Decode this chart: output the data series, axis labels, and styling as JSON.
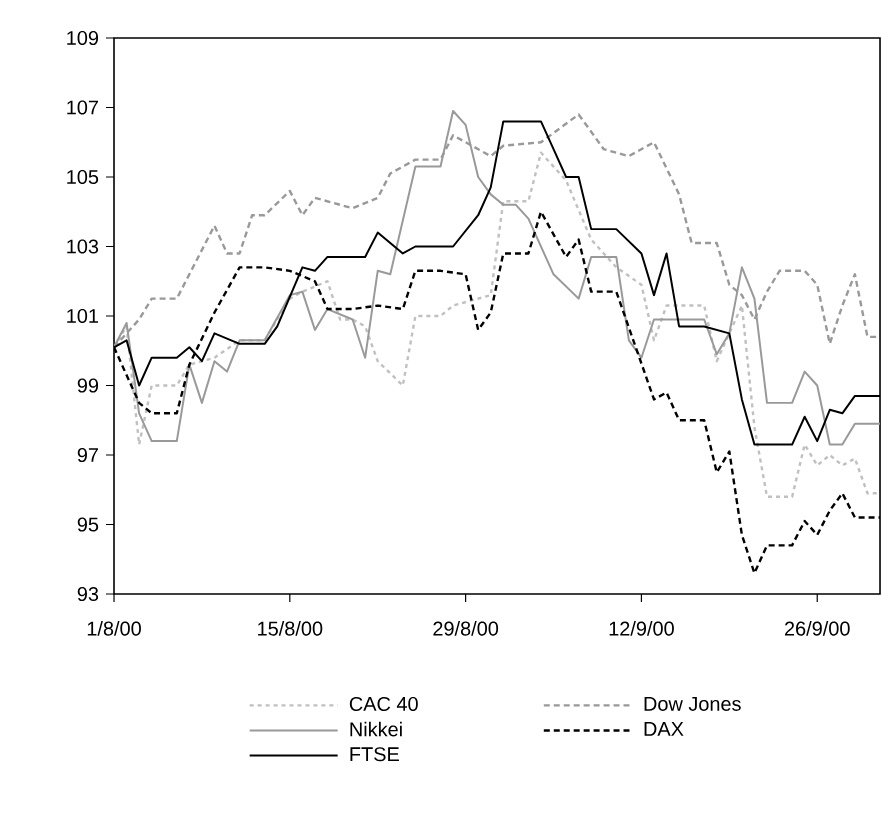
{
  "chart_data": {
    "type": "line",
    "marker": "none",
    "legend": "bottom",
    "xlim": [
      "2000-08-01",
      "2000-10-01"
    ],
    "xticks": [
      {
        "value": "2000-08-01",
        "label": "1/8/00"
      },
      {
        "value": "2000-08-15",
        "label": "15/8/00"
      },
      {
        "value": "2000-08-29",
        "label": "29/8/00"
      },
      {
        "value": "2000-09-12",
        "label": "12/9/00"
      },
      {
        "value": "2000-09-26",
        "label": "26/9/00"
      }
    ],
    "ylim": [
      93,
      109
    ],
    "yticks": [
      93,
      95,
      97,
      99,
      101,
      103,
      105,
      107,
      109
    ],
    "series": [
      {
        "name": "CAC 40",
        "color": "#c0c0c0",
        "line_style": "dotted",
        "x": [
          "2000-08-01",
          "2000-08-02",
          "2000-08-03",
          "2000-08-04",
          "2000-08-06",
          "2000-08-07",
          "2000-08-09",
          "2000-08-11",
          "2000-08-13",
          "2000-08-15",
          "2000-08-16",
          "2000-08-18",
          "2000-08-19",
          "2000-08-20",
          "2000-08-21",
          "2000-08-22",
          "2000-08-24",
          "2000-08-25",
          "2000-08-27",
          "2000-08-28",
          "2000-08-31",
          "2000-09-01",
          "2000-09-03",
          "2000-09-04",
          "2000-09-06",
          "2000-09-08",
          "2000-09-10",
          "2000-09-12",
          "2000-09-13",
          "2000-09-14",
          "2000-09-17",
          "2000-09-18",
          "2000-09-20",
          "2000-09-21",
          "2000-09-22",
          "2000-09-24",
          "2000-09-25",
          "2000-09-26",
          "2000-09-27",
          "2000-09-28",
          "2000-09-29",
          "2000-09-30",
          "2000-10-01"
        ],
        "values": [
          100.1,
          100.7,
          97.3,
          99.0,
          99.0,
          99.6,
          99.8,
          100.3,
          100.3,
          101.5,
          101.7,
          102.0,
          100.9,
          100.9,
          100.7,
          99.7,
          99.0,
          101.0,
          101.0,
          101.3,
          101.6,
          104.3,
          104.3,
          105.7,
          104.9,
          103.2,
          102.4,
          101.9,
          100.3,
          101.3,
          101.3,
          99.7,
          101.3,
          97.8,
          95.8,
          95.8,
          97.3,
          96.7,
          97.0,
          96.7,
          96.9,
          95.9,
          95.9
        ]
      },
      {
        "name": "Dow Jones",
        "color": "#999999",
        "line_style": "dashed",
        "x": [
          "2000-08-01",
          "2000-08-03",
          "2000-08-04",
          "2000-08-06",
          "2000-08-09",
          "2000-08-10",
          "2000-08-11",
          "2000-08-12",
          "2000-08-13",
          "2000-08-15",
          "2000-08-16",
          "2000-08-17",
          "2000-08-20",
          "2000-08-22",
          "2000-08-23",
          "2000-08-25",
          "2000-08-27",
          "2000-08-28",
          "2000-08-31",
          "2000-09-01",
          "2000-09-04",
          "2000-09-07",
          "2000-09-09",
          "2000-09-11",
          "2000-09-13",
          "2000-09-15",
          "2000-09-16",
          "2000-09-18",
          "2000-09-19",
          "2000-09-20",
          "2000-09-21",
          "2000-09-22",
          "2000-09-23",
          "2000-09-25",
          "2000-09-26",
          "2000-09-27",
          "2000-09-28",
          "2000-09-29",
          "2000-09-30",
          "2000-10-01"
        ],
        "values": [
          100.1,
          100.9,
          101.5,
          101.5,
          103.6,
          102.8,
          102.8,
          103.9,
          103.9,
          104.6,
          103.9,
          104.4,
          104.1,
          104.4,
          105.1,
          105.5,
          105.5,
          106.2,
          105.6,
          105.9,
          106.0,
          106.8,
          105.8,
          105.6,
          106.0,
          104.5,
          103.1,
          103.1,
          101.9,
          101.6,
          100.9,
          101.7,
          102.3,
          102.3,
          101.9,
          100.2,
          101.3,
          102.2,
          100.4,
          100.4
        ]
      },
      {
        "name": "Nikkei",
        "color": "#999999",
        "line_style": "solid",
        "x": [
          "2000-08-01",
          "2000-08-02",
          "2000-08-03",
          "2000-08-04",
          "2000-08-06",
          "2000-08-07",
          "2000-08-08",
          "2000-08-09",
          "2000-08-10",
          "2000-08-11",
          "2000-08-13",
          "2000-08-15",
          "2000-08-16",
          "2000-08-17",
          "2000-08-18",
          "2000-08-20",
          "2000-08-21",
          "2000-08-22",
          "2000-08-23",
          "2000-08-25",
          "2000-08-27",
          "2000-08-28",
          "2000-08-29",
          "2000-08-30",
          "2000-08-31",
          "2000-09-01",
          "2000-09-02",
          "2000-09-03",
          "2000-09-05",
          "2000-09-07",
          "2000-09-08",
          "2000-09-10",
          "2000-09-11",
          "2000-09-12",
          "2000-09-13",
          "2000-09-17",
          "2000-09-18",
          "2000-09-19",
          "2000-09-20",
          "2000-09-21",
          "2000-09-22",
          "2000-09-24",
          "2000-09-25",
          "2000-09-26",
          "2000-09-27",
          "2000-09-28",
          "2000-09-29",
          "2000-10-01"
        ],
        "values": [
          100.1,
          100.8,
          98.2,
          97.4,
          97.4,
          99.6,
          98.5,
          99.7,
          99.4,
          100.3,
          100.3,
          101.6,
          101.7,
          100.6,
          101.2,
          100.9,
          99.8,
          102.3,
          102.2,
          105.3,
          105.3,
          106.9,
          106.5,
          105.0,
          104.5,
          104.2,
          104.2,
          103.8,
          102.2,
          101.5,
          102.7,
          102.7,
          100.3,
          99.8,
          100.9,
          100.9,
          99.9,
          100.5,
          102.4,
          101.5,
          98.5,
          98.5,
          99.4,
          99.0,
          97.3,
          97.3,
          97.9,
          97.9
        ]
      },
      {
        "name": "DAX",
        "color": "#000000",
        "line_style": "dashed",
        "x": [
          "2000-08-01",
          "2000-08-03",
          "2000-08-04",
          "2000-08-06",
          "2000-08-07",
          "2000-08-09",
          "2000-08-11",
          "2000-08-13",
          "2000-08-15",
          "2000-08-17",
          "2000-08-18",
          "2000-08-20",
          "2000-08-22",
          "2000-08-24",
          "2000-08-25",
          "2000-08-27",
          "2000-08-29",
          "2000-08-30",
          "2000-08-31",
          "2000-09-01",
          "2000-09-03",
          "2000-09-04",
          "2000-09-06",
          "2000-09-07",
          "2000-09-08",
          "2000-09-10",
          "2000-09-13",
          "2000-09-14",
          "2000-09-15",
          "2000-09-17",
          "2000-09-18",
          "2000-09-19",
          "2000-09-20",
          "2000-09-21",
          "2000-09-22",
          "2000-09-24",
          "2000-09-25",
          "2000-09-26",
          "2000-09-27",
          "2000-09-28",
          "2000-09-29",
          "2000-10-01"
        ],
        "values": [
          100.1,
          98.5,
          98.2,
          98.2,
          99.6,
          101.1,
          102.4,
          102.4,
          102.3,
          102.0,
          101.2,
          101.2,
          101.3,
          101.2,
          102.3,
          102.3,
          102.2,
          100.6,
          101.1,
          102.8,
          102.8,
          104.0,
          102.7,
          103.2,
          101.7,
          101.7,
          98.6,
          98.8,
          98.0,
          98.0,
          96.5,
          97.1,
          94.7,
          93.6,
          94.4,
          94.4,
          95.1,
          94.7,
          95.4,
          95.9,
          95.2,
          95.2
        ]
      },
      {
        "name": "FTSE",
        "color": "#000000",
        "line_style": "solid",
        "x": [
          "2000-08-01",
          "2000-08-02",
          "2000-08-03",
          "2000-08-04",
          "2000-08-06",
          "2000-08-07",
          "2000-08-08",
          "2000-08-09",
          "2000-08-11",
          "2000-08-13",
          "2000-08-14",
          "2000-08-16",
          "2000-08-17",
          "2000-08-18",
          "2000-08-21",
          "2000-08-22",
          "2000-08-24",
          "2000-08-25",
          "2000-08-28",
          "2000-08-30",
          "2000-08-31",
          "2000-09-01",
          "2000-09-04",
          "2000-09-05",
          "2000-09-06",
          "2000-09-07",
          "2000-09-08",
          "2000-09-10",
          "2000-09-12",
          "2000-09-13",
          "2000-09-14",
          "2000-09-15",
          "2000-09-17",
          "2000-09-19",
          "2000-09-20",
          "2000-09-21",
          "2000-09-24",
          "2000-09-25",
          "2000-09-26",
          "2000-09-27",
          "2000-09-28",
          "2000-09-29",
          "2000-10-01"
        ],
        "values": [
          100.1,
          100.3,
          99.0,
          99.8,
          99.8,
          100.1,
          99.7,
          100.5,
          100.2,
          100.2,
          100.7,
          102.4,
          102.3,
          102.7,
          102.7,
          103.4,
          102.8,
          103.0,
          103.0,
          103.9,
          104.7,
          106.6,
          106.6,
          105.8,
          105.0,
          105.0,
          103.5,
          103.5,
          102.8,
          101.6,
          102.8,
          100.7,
          100.7,
          100.5,
          98.6,
          97.3,
          97.3,
          98.1,
          97.4,
          98.3,
          98.2,
          98.7,
          98.7
        ]
      }
    ]
  }
}
